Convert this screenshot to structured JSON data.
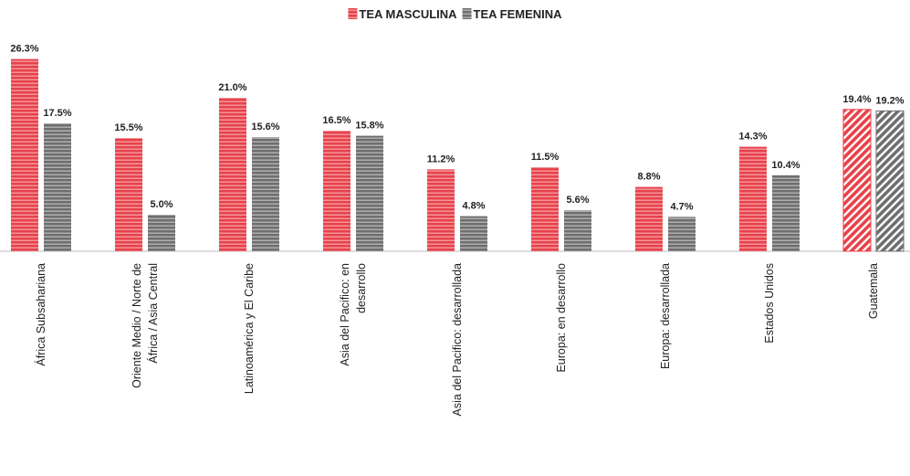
{
  "chart_data": {
    "type": "bar",
    "categories": [
      [
        "África Subsahariana"
      ],
      [
        "Oriente Medio / Norte de",
        "África / Asia Central"
      ],
      [
        "Latinoamérica y El Caribe"
      ],
      [
        "Asia del Pacifico: en",
        "desarrollo"
      ],
      [
        "Asia del Pacifico: desarrollada"
      ],
      [
        "Europa: en desarrollo"
      ],
      [
        "Europa: desarrollada"
      ],
      [
        "Estados Unidos"
      ],
      [
        "Guatemala"
      ]
    ],
    "series": [
      {
        "name": "TEA MASCULINA",
        "color": "#e8414a",
        "values": [
          26.3,
          15.5,
          21.0,
          16.5,
          11.2,
          11.5,
          8.8,
          14.3,
          19.4
        ],
        "value_labels": [
          "26.3%",
          "15.5%",
          "21.0%",
          "16.5%",
          "11.2%",
          "11.5%",
          "8.8%",
          "14.3%",
          "19.4%"
        ]
      },
      {
        "name": "TEA FEMENINA",
        "color": "#6e6e6e",
        "values": [
          17.5,
          5.0,
          15.6,
          15.8,
          4.8,
          5.6,
          4.7,
          10.4,
          19.2
        ],
        "value_labels": [
          "17.5%",
          "5.0%",
          "15.6%",
          "15.8%",
          "4.8%",
          "5.6%",
          "4.7%",
          "10.4%",
          "19.2%"
        ]
      }
    ],
    "ylim": [
      0,
      30
    ],
    "legend": "top"
  }
}
